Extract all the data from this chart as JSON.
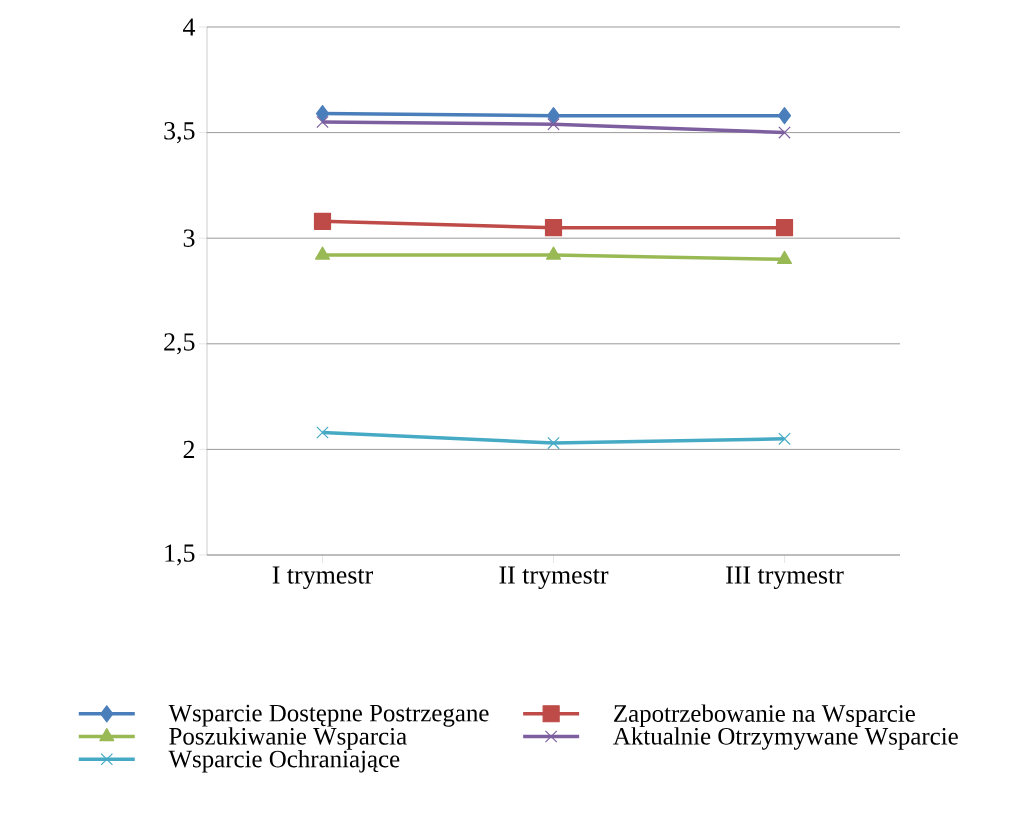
{
  "chart_data": {
    "type": "line",
    "categories": [
      "I trymestr",
      "II trymestr",
      "III trymestr"
    ],
    "ylim": [
      1.5,
      4
    ],
    "yticks": [
      {
        "value": 1.5,
        "label": "1,5"
      },
      2,
      {
        "value": 2.5,
        "label": "2,5"
      },
      3,
      {
        "value": 3.5,
        "label": "3,5"
      },
      4
    ],
    "grid": "y",
    "legend": "bottom",
    "line_style": "solid",
    "series": [
      {
        "name": "Wsparcie Dostępne Postrzegane",
        "color": "#4a7ebb",
        "marker": "diamond",
        "values": [
          3.59,
          3.58,
          3.58
        ]
      },
      {
        "name": "Zapotrzebowanie na Wsparcie",
        "color": "#be4b48",
        "marker": "square",
        "values": [
          3.08,
          3.05,
          3.05
        ]
      },
      {
        "name": "Poszukiwanie Wsparcia",
        "color": "#98b954",
        "marker": "triangle",
        "values": [
          2.92,
          2.92,
          2.9
        ]
      },
      {
        "name": "Aktualnie Otrzymywane Wsparcie",
        "color": "#7d5fa0",
        "marker": "cross",
        "values": [
          3.55,
          3.54,
          3.5
        ]
      },
      {
        "name": "Wsparcie Ochraniające",
        "color": "#46aac5",
        "marker": "cross",
        "values": [
          2.08,
          2.03,
          2.05
        ]
      }
    ]
  }
}
